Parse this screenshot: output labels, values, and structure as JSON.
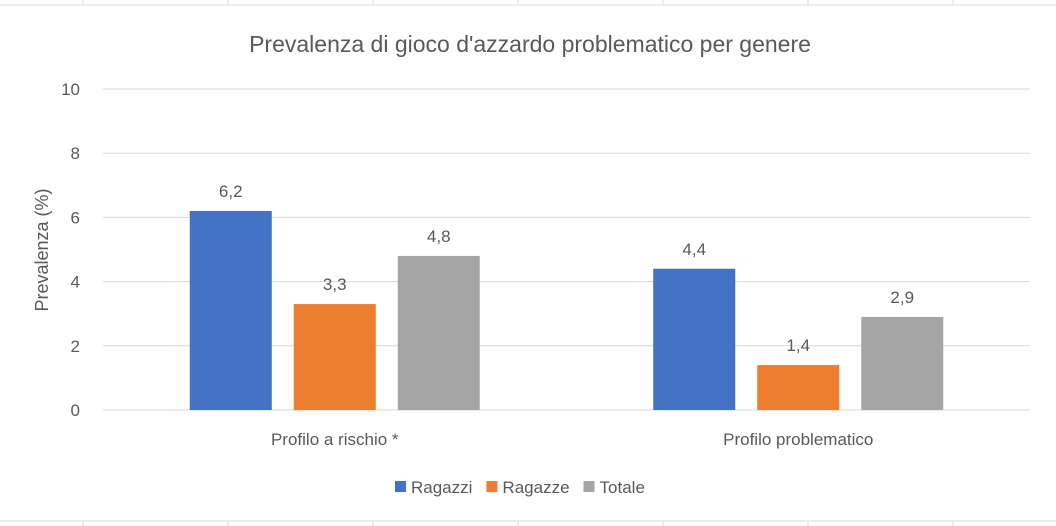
{
  "chart_data": {
    "type": "bar",
    "title": "Prevalenza di gioco d'azzardo problematico per genere",
    "xlabel": "",
    "ylabel": "Prevalenza (%)",
    "ylim": [
      0,
      10
    ],
    "yticks": [
      0,
      2,
      4,
      6,
      8,
      10
    ],
    "grid": true,
    "legend_position": "bottom",
    "categories": [
      "Profilo a rischio *",
      "Profilo problematico"
    ],
    "series": [
      {
        "name": "Ragazzi",
        "color": "#4472C4",
        "values": [
          6.2,
          4.4
        ],
        "labels": [
          "6,2",
          "4,4"
        ]
      },
      {
        "name": "Ragazze",
        "color": "#ED7D31",
        "values": [
          3.3,
          1.4
        ],
        "labels": [
          "3,3",
          "1,4"
        ]
      },
      {
        "name": "Totale",
        "color": "#A5A5A5",
        "values": [
          4.8,
          2.9
        ],
        "labels": [
          "4,8",
          "2,9"
        ]
      }
    ]
  }
}
